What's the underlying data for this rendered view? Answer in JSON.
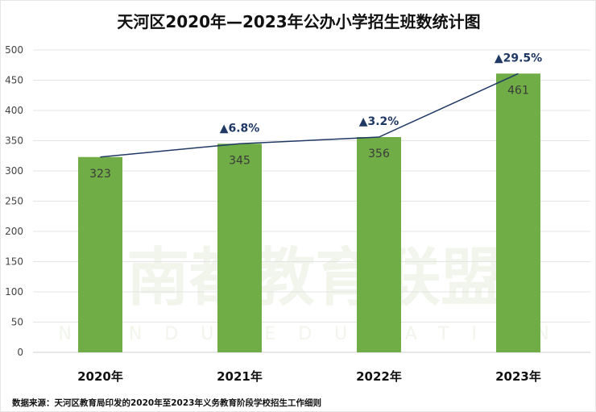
{
  "chart_data": {
    "type": "bar",
    "title": "天河区2020年—2023年公办小学招生班数统计图",
    "categories": [
      "2020年",
      "2021年",
      "2022年",
      "2023年"
    ],
    "values": [
      323,
      345,
      356,
      461
    ],
    "growth_labels": [
      "",
      "▲6.8%",
      "▲3.2%",
      "▲29.5%"
    ],
    "overlay_line": true,
    "ylim": [
      0,
      500
    ],
    "yticks": [
      0,
      50,
      100,
      150,
      200,
      250,
      300,
      350,
      400,
      450,
      500
    ],
    "grid": true,
    "xlabel": "",
    "ylabel": "",
    "colors": {
      "bar": "#70ad47",
      "line": "#1f3864",
      "growth": "#1f3864"
    }
  },
  "source": "数据来源：天河区教育局印发的2020年至2023年义务教育阶段学校招生工作细则",
  "watermark": {
    "cn": "南都教育联盟",
    "en": "NANDU EDUCATION"
  }
}
